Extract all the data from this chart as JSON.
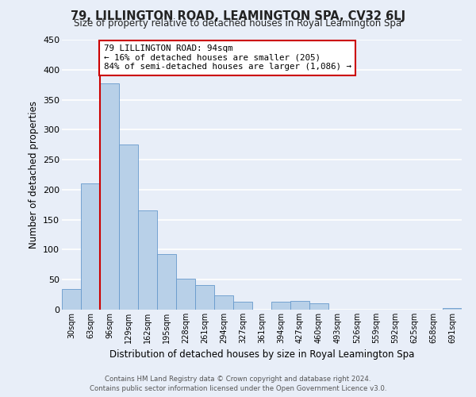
{
  "title": "79, LILLINGTON ROAD, LEAMINGTON SPA, CV32 6LJ",
  "subtitle": "Size of property relative to detached houses in Royal Leamington Spa",
  "xlabel": "Distribution of detached houses by size in Royal Leamington Spa",
  "ylabel": "Number of detached properties",
  "bin_labels": [
    "30sqm",
    "63sqm",
    "96sqm",
    "129sqm",
    "162sqm",
    "195sqm",
    "228sqm",
    "261sqm",
    "294sqm",
    "327sqm",
    "361sqm",
    "394sqm",
    "427sqm",
    "460sqm",
    "493sqm",
    "526sqm",
    "559sqm",
    "592sqm",
    "625sqm",
    "658sqm",
    "691sqm"
  ],
  "bar_values": [
    34,
    210,
    377,
    275,
    165,
    93,
    52,
    41,
    24,
    13,
    0,
    13,
    14,
    10,
    0,
    0,
    0,
    0,
    0,
    0,
    2
  ],
  "bar_color": "#b8d0e8",
  "bar_edge_color": "#6699cc",
  "vline_color": "#cc0000",
  "annotation_line1": "79 LILLINGTON ROAD: 94sqm",
  "annotation_line2": "← 16% of detached houses are smaller (205)",
  "annotation_line3": "84% of semi-detached houses are larger (1,086) →",
  "annotation_box_color": "#ffffff",
  "annotation_box_edge": "#cc0000",
  "ylim": [
    0,
    450
  ],
  "yticks": [
    0,
    50,
    100,
    150,
    200,
    250,
    300,
    350,
    400,
    450
  ],
  "footer_line1": "Contains HM Land Registry data © Crown copyright and database right 2024.",
  "footer_line2": "Contains public sector information licensed under the Open Government Licence v3.0.",
  "background_color": "#e8eef8",
  "grid_color": "#ffffff"
}
